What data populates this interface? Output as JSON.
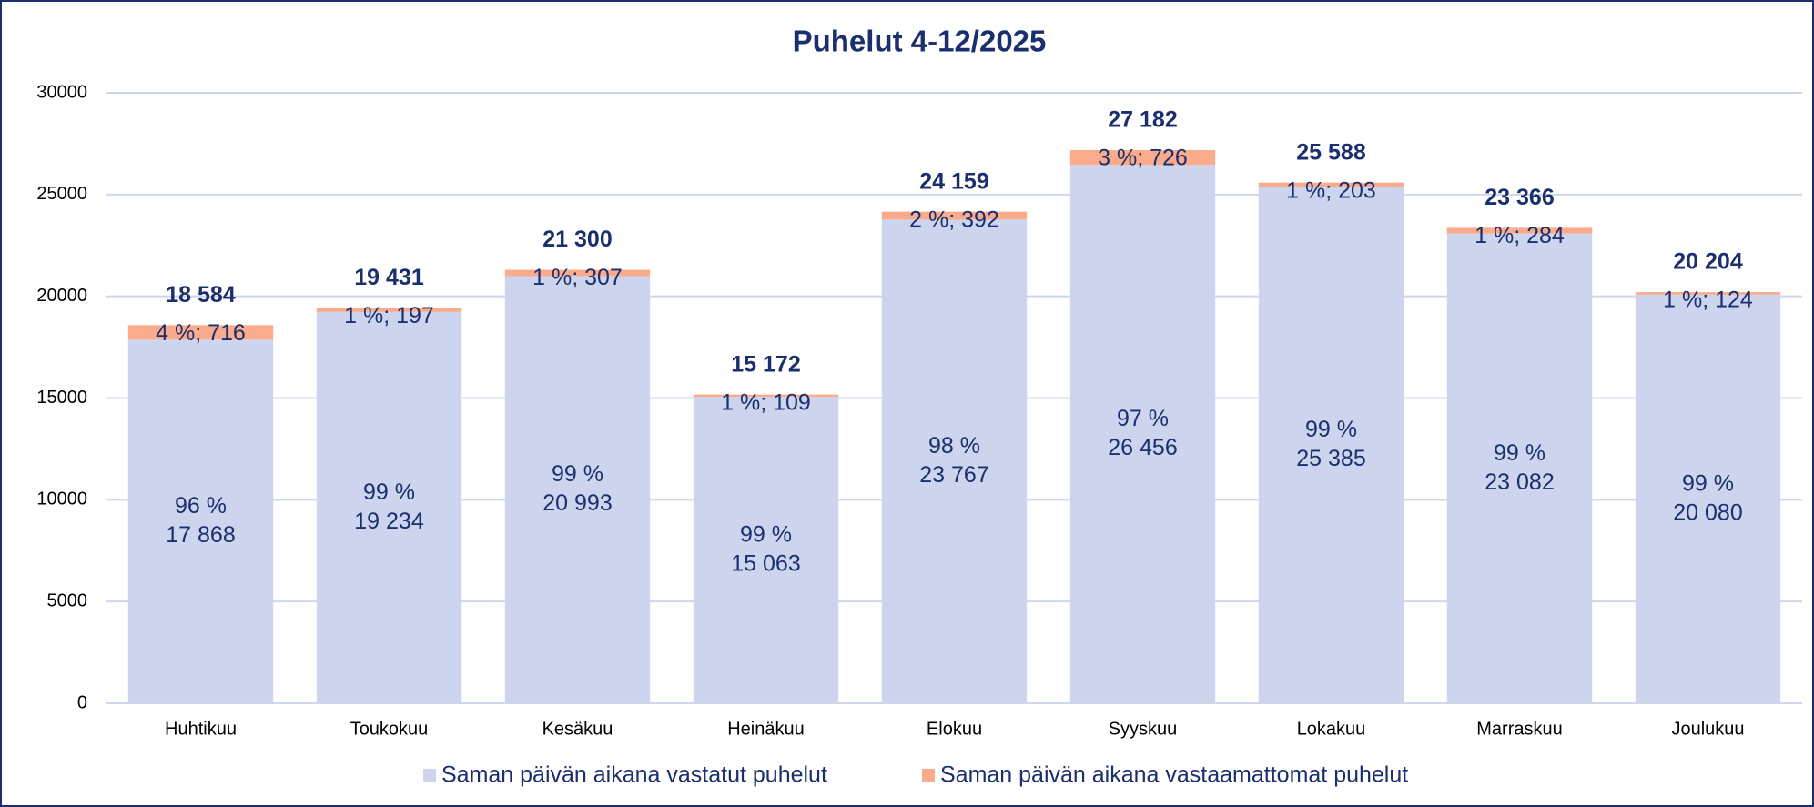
{
  "chart_data": {
    "type": "stacked_bar",
    "title": "Puhelut 4-12/2025",
    "categories": [
      "Huhtikuu",
      "Toukokuu",
      "Kesäkuu",
      "Heinäkuu",
      "Elokuu",
      "Syyskuu",
      "Lokakuu",
      "Marraskuu",
      "Joulukuu"
    ],
    "series": [
      {
        "name": "Saman päivän aikana vastatut puhelut",
        "color": "#cdd5ee",
        "values": [
          17868,
          19234,
          20993,
          15063,
          23767,
          26456,
          25385,
          23082,
          20080
        ],
        "value_labels": [
          [
            "96 %",
            "17 868"
          ],
          [
            "99 %",
            "19 234"
          ],
          [
            "99 %",
            "20 993"
          ],
          [
            "99 %",
            "15 063"
          ],
          [
            "98 %",
            "23 767"
          ],
          [
            "97 %",
            "26 456"
          ],
          [
            "99 %",
            "25 385"
          ],
          [
            "99 %",
            "23 082"
          ],
          [
            "99 %",
            "20 080"
          ]
        ]
      },
      {
        "name": "Saman päivän aikana vastaamattomat puhelut",
        "color": "#f9ab8b",
        "values": [
          716,
          197,
          307,
          109,
          392,
          726,
          203,
          284,
          124
        ],
        "value_labels": [
          "4 %; 716",
          "1 %; 197",
          "1 %; 307",
          "1 %; 109",
          "2 %; 392",
          "3 %; 726",
          "1 %; 203",
          "1 %; 284",
          "1 %; 124"
        ]
      }
    ],
    "totals": [
      18584,
      19431,
      21300,
      15172,
      24159,
      27182,
      25588,
      23366,
      20204
    ],
    "total_labels": [
      "18 584",
      "19 431",
      "21 300",
      "15 172",
      "24 159",
      "27 182",
      "25 588",
      "23 366",
      "20 204"
    ],
    "ylim": [
      0,
      30000
    ],
    "yticks": [
      0,
      5000,
      10000,
      15000,
      20000,
      25000,
      30000
    ],
    "grid": true,
    "legend": "bottom"
  }
}
